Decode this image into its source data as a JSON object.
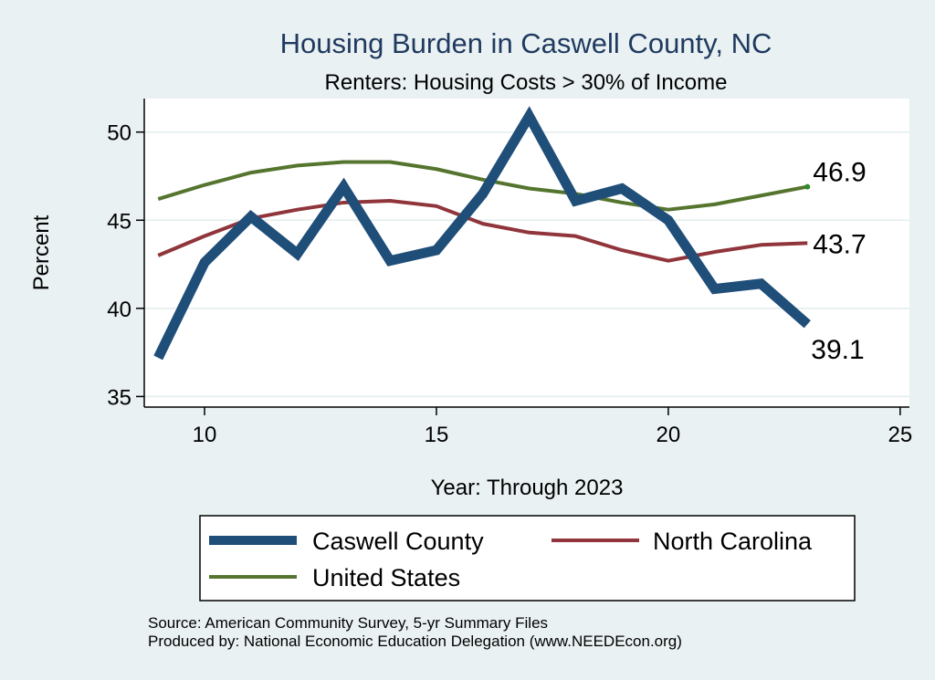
{
  "chart_data": {
    "type": "line",
    "title": "Housing Burden in Caswell County, NC",
    "subtitle": "Renters: Housing Costs > 30% of Income",
    "xlabel": "Year: Through 2023",
    "ylabel": "Percent",
    "xlim": [
      8.7,
      25.2
    ],
    "ylim": [
      34.4,
      51.9
    ],
    "xticks": [
      10,
      15,
      20,
      25
    ],
    "yticks": [
      35,
      40,
      45,
      50
    ],
    "series": [
      {
        "name": "Caswell County",
        "color": "#1f4e79",
        "x": [
          9,
          10,
          11,
          12,
          13,
          14,
          15,
          16,
          17,
          18,
          19,
          20,
          21,
          22,
          23
        ],
        "values": [
          37.2,
          42.6,
          45.2,
          43.1,
          46.9,
          42.7,
          43.3,
          46.5,
          50.9,
          46.1,
          46.8,
          45.0,
          41.1,
          41.4,
          39.1
        ],
        "end_label": "39.1"
      },
      {
        "name": "North Carolina",
        "color": "#90353b",
        "x": [
          9,
          10,
          11,
          12,
          13,
          14,
          15,
          16,
          17,
          18,
          19,
          20,
          21,
          22,
          23
        ],
        "values": [
          43.0,
          44.1,
          45.1,
          45.6,
          46.0,
          46.1,
          45.8,
          44.8,
          44.3,
          44.1,
          43.3,
          42.7,
          43.2,
          43.6,
          43.7
        ],
        "end_label": "43.7"
      },
      {
        "name": "United States",
        "color": "#55752f",
        "x": [
          9,
          10,
          11,
          12,
          13,
          14,
          15,
          16,
          17,
          18,
          19,
          20,
          21,
          22,
          23
        ],
        "values": [
          46.2,
          47.0,
          47.7,
          48.1,
          48.3,
          48.3,
          47.9,
          47.3,
          46.8,
          46.5,
          46.0,
          45.6,
          45.9,
          46.4,
          46.9
        ],
        "end_label": "46.9"
      }
    ],
    "legend": [
      "Caswell County",
      "North Carolina",
      "United States"
    ],
    "grid": true
  },
  "footer": {
    "source": "Source: American Community Survey, 5-yr Summary Files",
    "produced_by": "Produced by: National Economic Education Delegation (www.NEEDEcon.org)"
  }
}
